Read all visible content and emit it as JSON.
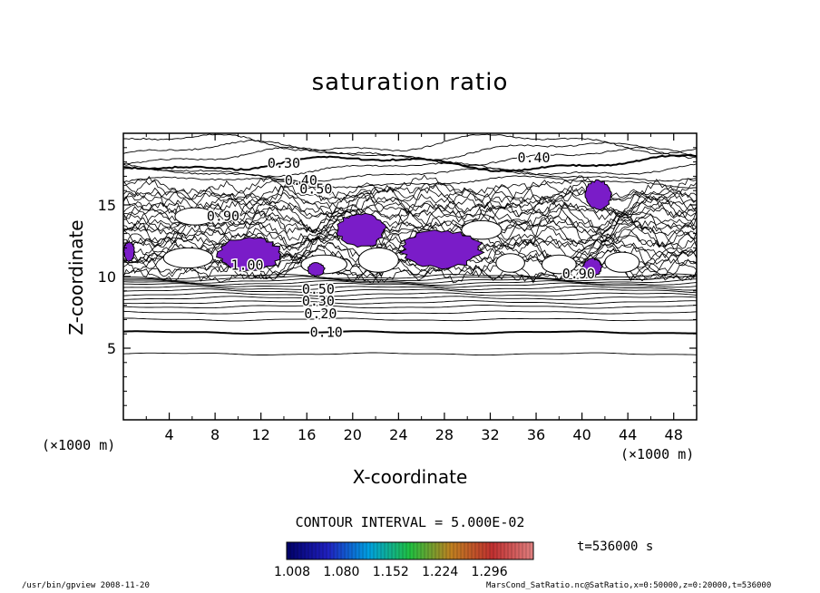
{
  "chart_data": {
    "type": "contour",
    "title": "saturation ratio",
    "xlabel": "X-coordinate",
    "ylabel": "Z-coordinate",
    "x_unit": "(×1000 m)",
    "y_unit": "(×1000 m)",
    "xlim": [
      0,
      50
    ],
    "ylim": [
      0,
      20
    ],
    "x_ticks": [
      "4",
      "8",
      "12",
      "16",
      "20",
      "24",
      "28",
      "32",
      "36",
      "40",
      "44",
      "48"
    ],
    "y_ticks": [
      "5",
      "10",
      "15"
    ],
    "contour_interval_text": "CONTOUR INTERVAL = 5.000E-02",
    "contour_labels": [
      {
        "text": "0.10",
        "x": 17.7,
        "z": 6.1
      },
      {
        "text": "0.20",
        "x": 17.2,
        "z": 7.4
      },
      {
        "text": "0.30",
        "x": 17.0,
        "z": 8.3
      },
      {
        "text": "0.50",
        "x": 17.0,
        "z": 9.1
      },
      {
        "text": "0.30",
        "x": 14.0,
        "z": 17.9
      },
      {
        "text": "0.40",
        "x": 15.5,
        "z": 16.7
      },
      {
        "text": "0.50",
        "x": 16.8,
        "z": 16.1
      },
      {
        "text": "0.40",
        "x": 35.8,
        "z": 18.3
      },
      {
        "text": "0.90",
        "x": 8.7,
        "z": 14.2
      },
      {
        "text": "1.00",
        "x": 10.8,
        "z": 10.8
      },
      {
        "text": "0.90",
        "x": 39.7,
        "z": 10.2
      }
    ],
    "supersaturated_regions": [
      {
        "x": [
          8.0,
          14.0
        ],
        "z": [
          10.3,
          12.8
        ]
      },
      {
        "x": [
          16.0,
          17.6
        ],
        "z": [
          10.0,
          11.0
        ]
      },
      {
        "x": [
          18.5,
          23.0
        ],
        "z": [
          12.0,
          14.5
        ]
      },
      {
        "x": [
          24.0,
          31.5
        ],
        "z": [
          10.5,
          13.3
        ]
      },
      {
        "x": [
          40.0,
          41.8
        ],
        "z": [
          10.0,
          11.3
        ]
      },
      {
        "x": [
          40.2,
          42.6
        ],
        "z": [
          14.6,
          16.8
        ]
      },
      {
        "x": [
          0.0,
          1.0
        ],
        "z": [
          11.0,
          12.5
        ]
      }
    ],
    "colorbar": {
      "ticks": [
        "1.008",
        "1.080",
        "1.152",
        "1.224",
        "1.296"
      ],
      "colors": [
        "#000066",
        "#2020c0",
        "#00a0e0",
        "#20c040",
        "#c08020",
        "#c03030",
        "#e08080"
      ],
      "region_color": "#7a1cc8"
    },
    "time_label": "t=536000 s"
  },
  "footer": {
    "left": "/usr/bin/gpview   2008-11-20",
    "right": "MarsCond_SatRatio.nc@SatRatio,x=0:50000,z=0:20000,t=536000"
  }
}
